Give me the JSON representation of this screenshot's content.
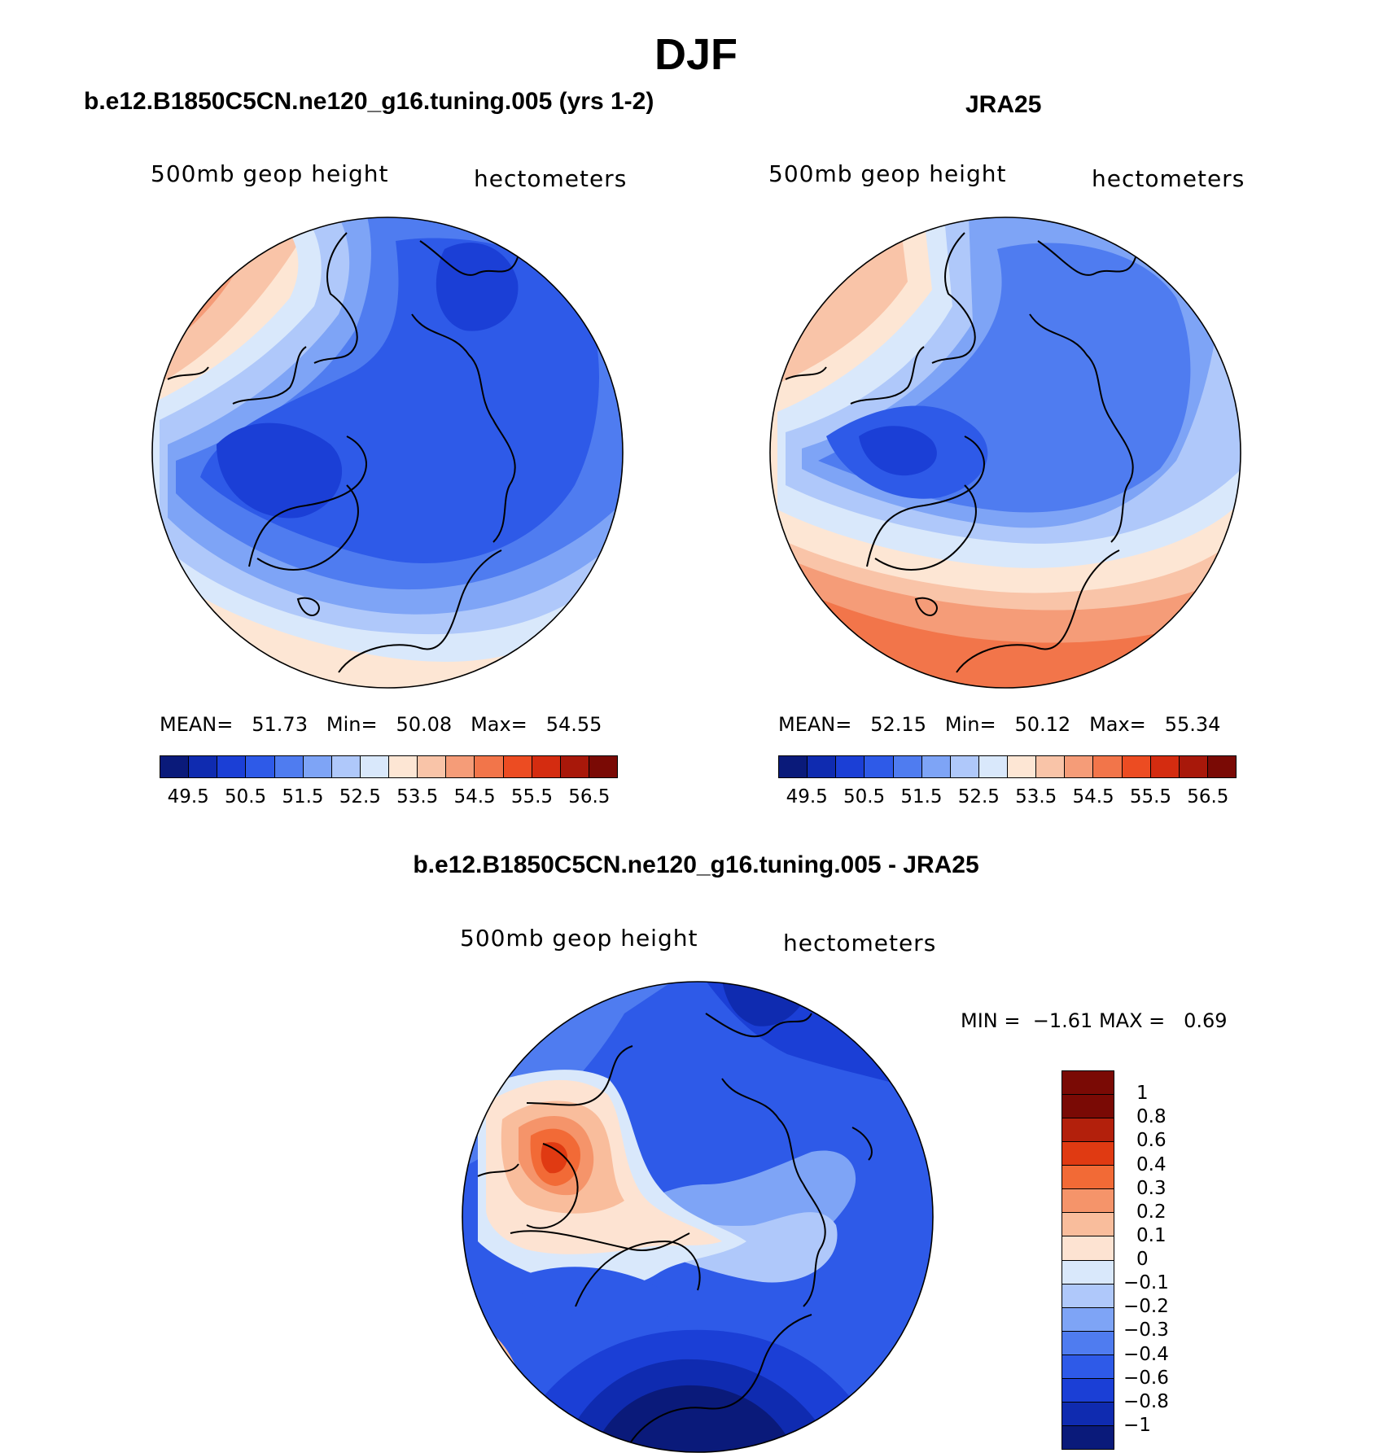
{
  "figure": {
    "title": "DJF"
  },
  "panels": {
    "model": {
      "title": "b.e12.B1850C5CN.ne120_g16.tuning.005 (yrs 1-2)",
      "left_label": "500mb geop height",
      "right_label": "hectometers",
      "stats": {
        "mean_label": "MEAN=",
        "mean": "51.73",
        "min_label": "Min=",
        "min": "50.08",
        "max_label": "Max=",
        "max": "54.55"
      },
      "colorbar_ticks": [
        "49.5",
        "50.5",
        "51.5",
        "52.5",
        "53.5",
        "54.5",
        "55.5",
        "56.5"
      ]
    },
    "obs": {
      "title": "JRA25",
      "left_label": "500mb geop height",
      "right_label": "hectometers",
      "stats": {
        "mean_label": "MEAN=",
        "mean": "52.15",
        "min_label": "Min=",
        "min": "50.12",
        "max_label": "Max=",
        "max": "55.34"
      },
      "colorbar_ticks": [
        "49.5",
        "50.5",
        "51.5",
        "52.5",
        "53.5",
        "54.5",
        "55.5",
        "56.5"
      ]
    },
    "diff": {
      "title": "b.e12.B1850C5CN.ne120_g16.tuning.005 - JRA25",
      "left_label": "500mb geop height",
      "right_label": "hectometers",
      "min_label": "MIN =",
      "min": "−1.61",
      "max_label": "MAX =",
      "max": "0.69",
      "colorbar_levels": [
        "1",
        "0.8",
        "0.6",
        "0.4",
        "0.3",
        "0.2",
        "0.1",
        "0",
        "−0.1",
        "−0.2",
        "−0.3",
        "−0.4",
        "−0.6",
        "−0.8",
        "−1"
      ]
    }
  },
  "colors": {
    "abs_scale": [
      "#0a1a7a",
      "#0f2bb0",
      "#1b3fd6",
      "#2e5ae8",
      "#4f7cf0",
      "#7ea4f6",
      "#afc8fa",
      "#d9e8fb",
      "#fde6d4",
      "#f9c4a8",
      "#f59c78",
      "#f2754a",
      "#ec4c22",
      "#d42c10",
      "#a8180a",
      "#7a0a05"
    ],
    "diff_scale": [
      "#7a0a05",
      "#b3200c",
      "#e03a12",
      "#f26a36",
      "#f5946a",
      "#f9bd9c",
      "#fde3d2",
      "#d9e8fb",
      "#afc8fa",
      "#7ea4f6",
      "#4f7cf0",
      "#2e5ae8",
      "#1b3fd6",
      "#0f2bb0",
      "#0a1a7a"
    ]
  },
  "chart_data": [
    {
      "type": "heatmap",
      "title": "b.e12.B1850C5CN.ne120_g16.tuning.005 (yrs 1-2)",
      "variable": "500mb geop height",
      "units": "hectometers",
      "projection": "north polar stereographic",
      "contour_levels": [
        49.5,
        50,
        50.5,
        51,
        51.5,
        52,
        52.5,
        53,
        53.5,
        54,
        54.5,
        55,
        55.5,
        56,
        56.5
      ],
      "mean": 51.73,
      "min": 50.08,
      "max": 54.55
    },
    {
      "type": "heatmap",
      "title": "JRA25",
      "variable": "500mb geop height",
      "units": "hectometers",
      "projection": "north polar stereographic",
      "contour_levels": [
        49.5,
        50,
        50.5,
        51,
        51.5,
        52,
        52.5,
        53,
        53.5,
        54,
        54.5,
        55,
        55.5,
        56,
        56.5
      ],
      "mean": 52.15,
      "min": 50.12,
      "max": 55.34
    },
    {
      "type": "heatmap",
      "title": "b.e12.B1850C5CN.ne120_g16.tuning.005 - JRA25",
      "variable": "500mb geop height",
      "units": "hectometers",
      "projection": "north polar stereographic",
      "contour_levels": [
        -1,
        -0.8,
        -0.6,
        -0.4,
        -0.3,
        -0.2,
        -0.1,
        0,
        0.1,
        0.2,
        0.3,
        0.4,
        0.6,
        0.8,
        1
      ],
      "min": -1.61,
      "max": 0.69
    }
  ]
}
